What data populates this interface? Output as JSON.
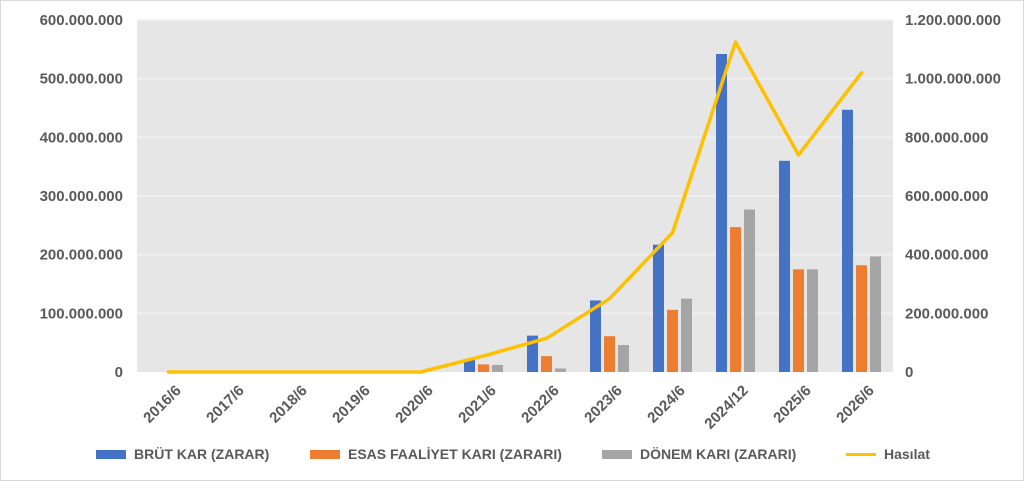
{
  "chart_data": {
    "type": "bar",
    "categories": [
      "2016/6",
      "2017/6",
      "2018/6",
      "2019/6",
      "2020/6",
      "2021/6",
      "2022/6",
      "2023/6",
      "2024/6",
      "2024/12",
      "2025/6",
      "2026/6"
    ],
    "series": [
      {
        "name": "BRÜT KAR (ZARAR)",
        "type": "bar",
        "axis": "left",
        "color": "#4472C4",
        "values": [
          0,
          0,
          0,
          0,
          0,
          22000000,
          62000000,
          122000000,
          217000000,
          542000000,
          360000000,
          447000000
        ]
      },
      {
        "name": "ESAS FAALİYET KARI (ZARARI)",
        "type": "bar",
        "axis": "left",
        "color": "#ED7D31",
        "values": [
          0,
          0,
          0,
          0,
          0,
          13000000,
          27000000,
          61000000,
          106000000,
          247000000,
          175000000,
          182000000
        ]
      },
      {
        "name": "DÖNEM KARI (ZARARI)",
        "type": "bar",
        "axis": "left",
        "color": "#A5A5A5",
        "values": [
          0,
          0,
          0,
          0,
          0,
          12000000,
          6000000,
          46000000,
          125000000,
          277000000,
          175000000,
          197000000
        ]
      },
      {
        "name": "Hasılat",
        "type": "line",
        "axis": "right",
        "color": "#FFC000",
        "values": [
          0,
          0,
          0,
          0,
          0,
          55000000,
          115000000,
          250000000,
          475000000,
          1125000000,
          740000000,
          1020000000
        ]
      }
    ],
    "y_left": {
      "min": 0,
      "max": 600000000,
      "step": 100000000,
      "tick_labels": [
        "0",
        "100.000.000",
        "200.000.000",
        "300.000.000",
        "400.000.000",
        "500.000.000",
        "600.000.000"
      ]
    },
    "y_right": {
      "min": 0,
      "max": 1200000000,
      "step": 200000000,
      "tick_labels": [
        "0",
        "200.000.000",
        "400.000.000",
        "600.000.000",
        "800.000.000",
        "1.000.000.000",
        "1.200.000.000"
      ]
    },
    "grid": true,
    "legend_position": "bottom",
    "plot_background": "#E7E6E6",
    "gridline_color": "#F2F2F2",
    "title": "",
    "xlabel": "",
    "ylabel": ""
  }
}
